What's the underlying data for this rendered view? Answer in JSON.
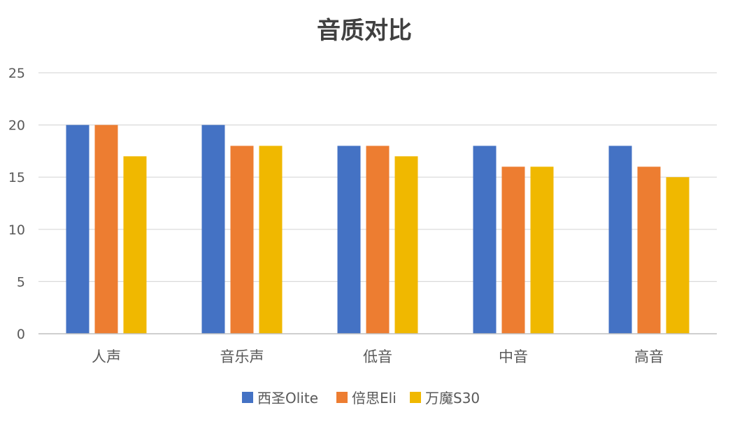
{
  "chart_data": {
    "type": "bar",
    "title": "音质对比",
    "xlabel": "",
    "ylabel": "",
    "ylim": [
      0,
      25
    ],
    "yticks": [
      0,
      5,
      10,
      15,
      20,
      25
    ],
    "grid": true,
    "legend_position": "bottom",
    "categories": [
      "人声",
      "音乐声",
      "低音",
      "中音",
      "高音"
    ],
    "series": [
      {
        "name": "西圣Olite",
        "color": "#4472C4",
        "values": [
          20,
          20,
          18,
          18,
          18
        ]
      },
      {
        "name": "倍思Eli",
        "color": "#ED7D31",
        "values": [
          20,
          18,
          18,
          16,
          16
        ]
      },
      {
        "name": "万魔S30",
        "color": "#F0B800",
        "values": [
          17,
          18,
          17,
          16,
          15
        ]
      }
    ]
  }
}
